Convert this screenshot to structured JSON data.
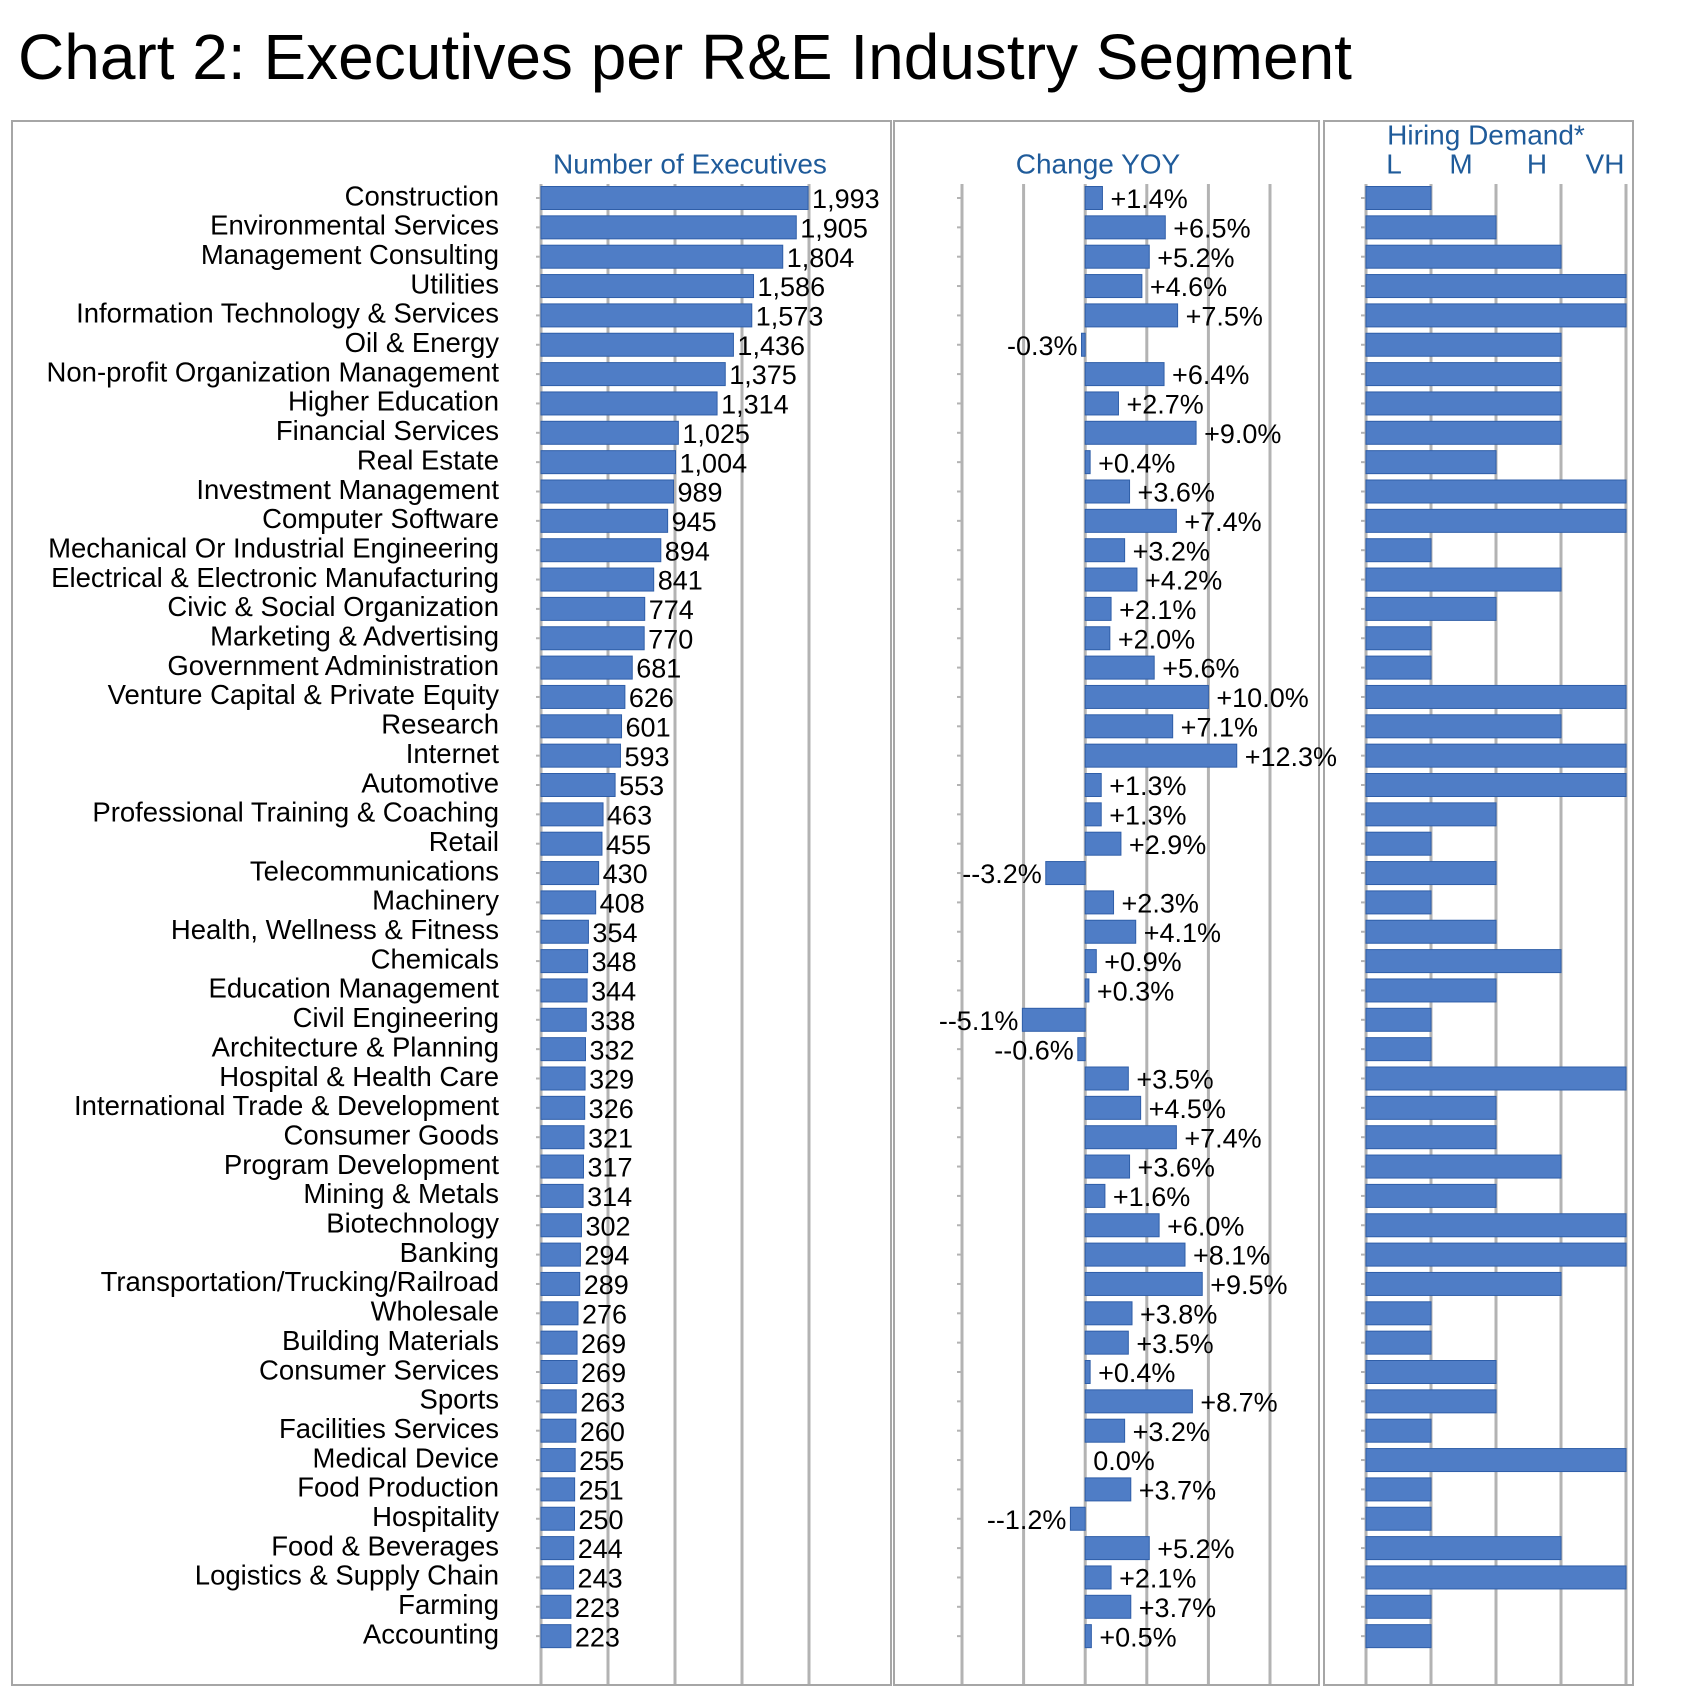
{
  "title": "Chart 2: Executives per R&E Industry Segment",
  "colors": {
    "bar": "#4f7dc6",
    "bar_stroke": "#2f5ea8",
    "grid": "#b3b3b3",
    "header": "#1f5b9a",
    "panel_border": "#a6a6a6",
    "text": "#000000"
  },
  "chart_data": [
    {
      "type": "bar",
      "orientation": "horizontal",
      "panel_title": "Number of Executives",
      "xlim": [
        0,
        2000
      ],
      "grid": true,
      "categories": [
        "Construction",
        "Environmental Services",
        "Management Consulting",
        "Utilities",
        "Information Technology & Services",
        "Oil & Energy",
        "Non-profit Organization Management",
        "Higher Education",
        "Financial Services",
        "Real Estate",
        "Investment Management",
        "Computer Software",
        "Mechanical Or Industrial Engineering",
        "Electrical & Electronic Manufacturing",
        "Civic & Social Organization",
        "Marketing & Advertising",
        "Government Administration",
        "Venture Capital & Private Equity",
        "Research",
        "Internet",
        "Automotive",
        "Professional Training & Coaching",
        "Retail",
        "Telecommunications",
        "Machinery",
        "Health, Wellness & Fitness",
        "Chemicals",
        "Education Management",
        "Civil Engineering",
        "Architecture & Planning",
        "Hospital & Health Care",
        "International Trade & Development",
        "Consumer Goods",
        "Program Development",
        "Mining & Metals",
        "Biotechnology",
        "Banking",
        "Transportation/Trucking/Railroad",
        "Wholesale",
        "Building Materials",
        "Consumer Services",
        "Sports",
        "Facilities Services",
        "Medical Device",
        "Food Production",
        "Hospitality",
        "Food & Beverages",
        "Logistics & Supply Chain",
        "Farming",
        "Accounting"
      ],
      "values": [
        1993,
        1905,
        1804,
        1586,
        1573,
        1436,
        1375,
        1314,
        1025,
        1004,
        989,
        945,
        894,
        841,
        774,
        770,
        681,
        626,
        601,
        593,
        553,
        463,
        455,
        430,
        408,
        354,
        348,
        344,
        338,
        332,
        329,
        326,
        321,
        317,
        314,
        302,
        294,
        289,
        276,
        269,
        269,
        263,
        260,
        255,
        251,
        250,
        244,
        243,
        223,
        223
      ],
      "labels": [
        "1,993",
        "1,905",
        "1,804",
        "1,586",
        "1,573",
        "1,436",
        "1,375",
        "1,314",
        "1,025",
        "1,004",
        "989",
        "945",
        "894",
        "841",
        "774",
        "770",
        "681",
        "626",
        "601",
        "593",
        "553",
        "463",
        "455",
        "430",
        "408",
        "354",
        "348",
        "344",
        "338",
        "332",
        "329",
        "326",
        "321",
        "317",
        "314",
        "302",
        "294",
        "289",
        "276",
        "269",
        "269",
        "263",
        "260",
        "255",
        "251",
        "250",
        "244",
        "243",
        "223",
        "223"
      ]
    },
    {
      "type": "bar",
      "orientation": "horizontal",
      "panel_title": "Change YOY",
      "unit": "%",
      "xlim": [
        -10,
        15
      ],
      "grid": true,
      "values": [
        1.4,
        6.5,
        5.2,
        4.6,
        7.5,
        -0.3,
        6.4,
        2.7,
        9.0,
        0.4,
        3.6,
        7.4,
        3.2,
        4.2,
        2.1,
        2.0,
        5.6,
        10.0,
        7.1,
        12.3,
        1.3,
        1.3,
        2.9,
        -3.2,
        2.3,
        4.1,
        0.9,
        0.3,
        -5.1,
        -0.6,
        3.5,
        4.5,
        7.4,
        3.6,
        1.6,
        6.0,
        8.1,
        9.5,
        3.8,
        3.5,
        0.4,
        8.7,
        3.2,
        0.0,
        3.7,
        -1.2,
        5.2,
        2.1,
        3.7,
        0.5
      ],
      "labels": [
        "+1.4%",
        "+6.5%",
        "+5.2%",
        "+4.6%",
        "+7.5%",
        "-0.3%",
        "+6.4%",
        "+2.7%",
        "+9.0%",
        "+0.4%",
        "+3.6%",
        "+7.4%",
        "+3.2%",
        "+4.2%",
        "+2.1%",
        "+2.0%",
        "+5.6%",
        "+10.0%",
        "+7.1%",
        "+12.3%",
        "+1.3%",
        "+1.3%",
        "+2.9%",
        "--3.2%",
        "+2.3%",
        "+4.1%",
        "+0.9%",
        "+0.3%",
        "--5.1%",
        "--0.6%",
        "+3.5%",
        "+4.5%",
        "+7.4%",
        "+3.6%",
        "+1.6%",
        "+6.0%",
        "+8.1%",
        "+9.5%",
        "+3.8%",
        "+3.5%",
        "+0.4%",
        "+8.7%",
        "+3.2%",
        "0.0%",
        "+3.7%",
        "--1.2%",
        "+5.2%",
        "+2.1%",
        "+3.7%",
        "+0.5%"
      ]
    },
    {
      "type": "bar",
      "orientation": "horizontal",
      "panel_title": "Hiring Demand*",
      "tick_labels": [
        "L",
        "M",
        "H",
        "VH"
      ],
      "xlim": [
        0,
        4
      ],
      "grid": true,
      "values": [
        1,
        2,
        3,
        4,
        4,
        3,
        3,
        3,
        3,
        2,
        4,
        4,
        1,
        3,
        2,
        1,
        1,
        4,
        3,
        4,
        4,
        2,
        1,
        2,
        1,
        2,
        3,
        2,
        1,
        1,
        4,
        2,
        2,
        3,
        2,
        4,
        4,
        3,
        1,
        1,
        2,
        2,
        1,
        4,
        1,
        1,
        3,
        4,
        1,
        1
      ]
    }
  ]
}
